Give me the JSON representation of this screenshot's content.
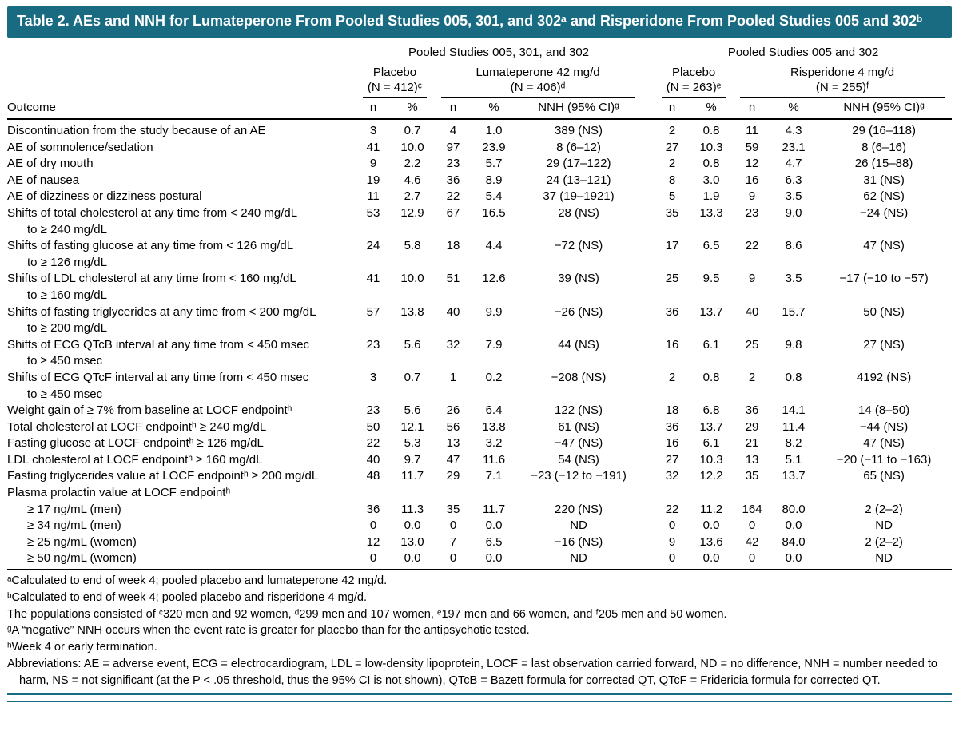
{
  "title": "Table 2. AEs and NNH for Lumateperone From Pooled Studies 005, 301, and 302ᵃ and Risperidone From Pooled Studies 005 and 302ᵇ",
  "colors": {
    "title_bar_teal": "#186b80",
    "rule_black": "#000000",
    "text": "#000000",
    "background": "#ffffff"
  },
  "header": {
    "outcome_label": "Outcome",
    "group1": "Pooled Studies 005, 301, and 302",
    "group2": "Pooled Studies 005 and 302",
    "subgroups": [
      {
        "name": "Placebo",
        "n": "(N = 412)ᶜ"
      },
      {
        "name": "Lumateperone 42 mg/d",
        "n": "(N = 406)ᵈ"
      },
      {
        "name": "Placebo",
        "n": "(N = 263)ᵉ"
      },
      {
        "name": "Risperidone 4 mg/d",
        "n": "(N = 255)ᶠ"
      }
    ],
    "col_labels": [
      "n",
      "%",
      "n",
      "%",
      "NNH (95% CI)ᵍ",
      "n",
      "%",
      "n",
      "%",
      "NNH (95% CI)ᵍ"
    ]
  },
  "table": {
    "rows": [
      {
        "outcome": "Discontinuation from the study because of an AE",
        "values": [
          "3",
          "0.7",
          "4",
          "1.0",
          "389 (NS)",
          "2",
          "0.8",
          "11",
          "4.3",
          "29 (16–118)"
        ]
      },
      {
        "outcome": "AE of somnolence/sedation",
        "values": [
          "41",
          "10.0",
          "97",
          "23.9",
          "8 (6–12)",
          "27",
          "10.3",
          "59",
          "23.1",
          "8 (6–16)"
        ]
      },
      {
        "outcome": "AE of dry mouth",
        "values": [
          "9",
          "2.2",
          "23",
          "5.7",
          "29 (17–122)",
          "2",
          "0.8",
          "12",
          "4.7",
          "26 (15–88)"
        ]
      },
      {
        "outcome": "AE of nausea",
        "values": [
          "19",
          "4.6",
          "36",
          "8.9",
          "24 (13–121)",
          "8",
          "3.0",
          "16",
          "6.3",
          "31 (NS)"
        ]
      },
      {
        "outcome": "AE of dizziness or dizziness postural",
        "values": [
          "11",
          "2.7",
          "22",
          "5.4",
          "37 (19–1921)",
          "5",
          "1.9",
          "9",
          "3.5",
          "62 (NS)"
        ]
      },
      {
        "outcome": "Shifts of total cholesterol at any time from < 240 mg/dL",
        "outcome2": "to ≥ 240 mg/dL",
        "values": [
          "53",
          "12.9",
          "67",
          "16.5",
          "28 (NS)",
          "35",
          "13.3",
          "23",
          "9.0",
          "−24 (NS)"
        ]
      },
      {
        "outcome": "Shifts of fasting glucose at any time from < 126 mg/dL",
        "outcome2": "to ≥ 126 mg/dL",
        "values": [
          "24",
          "5.8",
          "18",
          "4.4",
          "−72 (NS)",
          "17",
          "6.5",
          "22",
          "8.6",
          "47 (NS)"
        ]
      },
      {
        "outcome": "Shifts of LDL cholesterol at any time from < 160 mg/dL",
        "outcome2": "to ≥ 160 mg/dL",
        "values": [
          "41",
          "10.0",
          "51",
          "12.6",
          "39 (NS)",
          "25",
          "9.5",
          "9",
          "3.5",
          "−17 (−10 to −57)"
        ]
      },
      {
        "outcome": "Shifts of fasting triglycerides at any time from < 200 mg/dL",
        "outcome2": "to ≥ 200 mg/dL",
        "values": [
          "57",
          "13.8",
          "40",
          "9.9",
          "−26 (NS)",
          "36",
          "13.7",
          "40",
          "15.7",
          "50 (NS)"
        ]
      },
      {
        "outcome": "Shifts of ECG QTcB interval at any time from < 450 msec",
        "outcome2": "to ≥ 450 msec",
        "values": [
          "23",
          "5.6",
          "32",
          "7.9",
          "44 (NS)",
          "16",
          "6.1",
          "25",
          "9.8",
          "27 (NS)"
        ]
      },
      {
        "outcome": "Shifts of ECG QTcF interval at any time from < 450 msec",
        "outcome2": "to ≥ 450 msec",
        "values": [
          "3",
          "0.7",
          "1",
          "0.2",
          "−208 (NS)",
          "2",
          "0.8",
          "2",
          "0.8",
          "4192 (NS)"
        ]
      },
      {
        "outcome": "Weight gain of ≥ 7% from baseline at LOCF endpointʰ",
        "values": [
          "23",
          "5.6",
          "26",
          "6.4",
          "122 (NS)",
          "18",
          "6.8",
          "36",
          "14.1",
          "14 (8–50)"
        ]
      },
      {
        "outcome": "Total cholesterol at LOCF endpointʰ ≥ 240 mg/dL",
        "values": [
          "50",
          "12.1",
          "56",
          "13.8",
          "61 (NS)",
          "36",
          "13.7",
          "29",
          "11.4",
          "−44 (NS)"
        ]
      },
      {
        "outcome": "Fasting glucose at LOCF endpointʰ ≥ 126 mg/dL",
        "values": [
          "22",
          "5.3",
          "13",
          "3.2",
          "−47 (NS)",
          "16",
          "6.1",
          "21",
          "8.2",
          "47 (NS)"
        ]
      },
      {
        "outcome": "LDL cholesterol at LOCF endpointʰ ≥ 160 mg/dL",
        "values": [
          "40",
          "9.7",
          "47",
          "11.6",
          "54 (NS)",
          "27",
          "10.3",
          "13",
          "5.1",
          "−20 (−11 to −163)"
        ]
      },
      {
        "outcome": "Fasting triglycerides value at LOCF endpointʰ ≥ 200 mg/dL",
        "values": [
          "48",
          "11.7",
          "29",
          "7.1",
          "−23 (−12 to −191)",
          "32",
          "12.2",
          "35",
          "13.7",
          "65 (NS)"
        ]
      },
      {
        "outcome": "Plasma prolactin value at LOCF endpointʰ",
        "values": [
          "",
          "",
          "",
          "",
          "",
          "",
          "",
          "",
          "",
          ""
        ]
      },
      {
        "outcome": "≥ 17 ng/mL (men)",
        "indent": true,
        "values": [
          "36",
          "11.3",
          "35",
          "11.7",
          "220 (NS)",
          "22",
          "11.2",
          "164",
          "80.0",
          "2 (2–2)"
        ]
      },
      {
        "outcome": "≥ 34 ng/mL (men)",
        "indent": true,
        "values": [
          "0",
          "0.0",
          "0",
          "0.0",
          "ND",
          "0",
          "0.0",
          "0",
          "0.0",
          "ND"
        ]
      },
      {
        "outcome": "≥ 25 ng/mL (women)",
        "indent": true,
        "values": [
          "12",
          "13.0",
          "7",
          "6.5",
          "−16 (NS)",
          "9",
          "13.6",
          "42",
          "84.0",
          "2 (2–2)"
        ]
      },
      {
        "outcome": "≥ 50 ng/mL (women)",
        "indent": true,
        "values": [
          "0",
          "0.0",
          "0",
          "0.0",
          "ND",
          "0",
          "0.0",
          "0",
          "0.0",
          "ND"
        ]
      }
    ]
  },
  "footnotes": [
    "ᵃCalculated to end of week 4; pooled placebo and lumateperone 42 mg/d.",
    "ᵇCalculated to end of week 4; pooled placebo and risperidone 4 mg/d.",
    "The populations consisted of ᶜ320 men and 92 women, ᵈ299 men and 107 women, ᵉ197 men and 66 women, and ᶠ205 men and 50 women.",
    "ᵍA “negative” NNH occurs when the event rate is greater for placebo than for the antipsychotic tested.",
    "ʰWeek 4 or early termination.",
    "Abbreviations: AE = adverse event, ECG = electrocardiogram, LDL = low-density lipoprotein, LOCF = last observation carried forward, ND = no difference, NNH = number needed to harm, NS = not significant (at the P < .05 threshold, thus the 95% CI is not shown), QTcB = Bazett formula for corrected QT, QTcF = Fridericia formula for corrected QT."
  ]
}
